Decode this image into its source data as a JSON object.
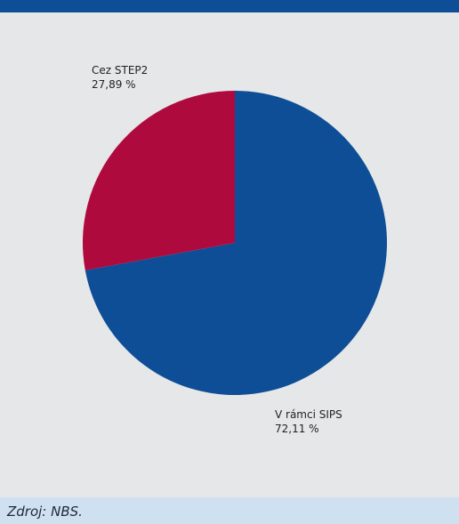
{
  "chart_data": {
    "type": "pie",
    "slices": [
      {
        "label": "V rámci SIPS",
        "value": 72.11,
        "display": "72,11  %",
        "color": "#0e4e96"
      },
      {
        "label": "Cez STEP2",
        "value": 27.89,
        "display": "27,89 %",
        "color": "#ae0a3e"
      }
    ],
    "legend": "none"
  },
  "source": "Zdroj: NBS.",
  "colors": {
    "header": "#0e4e96",
    "background": "#e6e7e8",
    "footer": "#cfe0f1"
  }
}
